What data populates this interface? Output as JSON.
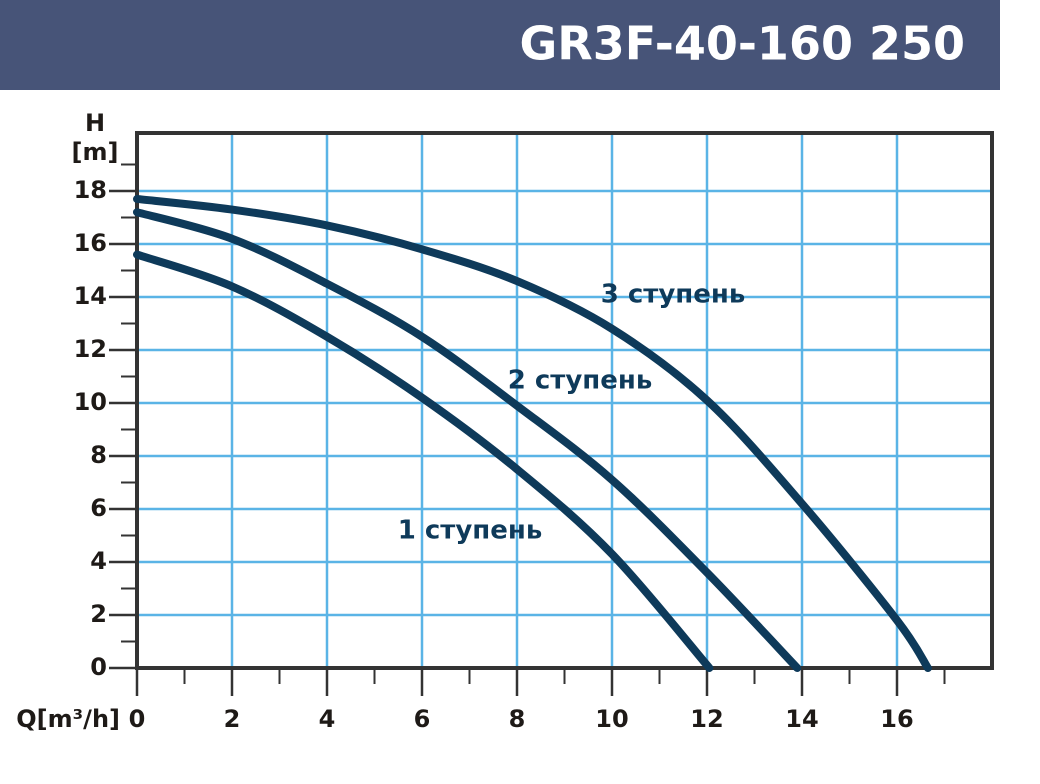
{
  "chart_data": {
    "type": "line",
    "title": "GR3F-40-160 250",
    "y_label_lines": [
      "H",
      "[m]"
    ],
    "x_label": "Q[m³/h]",
    "xlim": [
      0,
      18
    ],
    "xticks": [
      0,
      2,
      4,
      6,
      8,
      10,
      12,
      14,
      16
    ],
    "ylim": [
      0,
      20
    ],
    "yticks": [
      0,
      2,
      4,
      6,
      8,
      10,
      12,
      14,
      16,
      18
    ],
    "grid": true,
    "grid_color": "#5ab4e6",
    "series": [
      {
        "name": "1 ступень",
        "color": "#0e3a5a",
        "x": [
          0,
          2,
          4,
          6,
          8,
          10,
          12.05
        ],
        "values": [
          15.6,
          14.4,
          12.5,
          10.2,
          7.5,
          4.3,
          0
        ]
      },
      {
        "name": "2 ступень",
        "color": "#0e3a5a",
        "x": [
          0,
          2,
          4,
          6,
          8,
          10,
          12,
          13.9
        ],
        "values": [
          17.2,
          16.2,
          14.5,
          12.5,
          9.9,
          7.1,
          3.6,
          0
        ]
      },
      {
        "name": "3 ступень",
        "color": "#0e3a5a",
        "x": [
          0,
          2,
          4,
          6,
          8,
          10,
          12,
          14,
          16,
          16.65
        ],
        "values": [
          17.7,
          17.3,
          16.7,
          15.8,
          14.6,
          12.8,
          10.1,
          6.2,
          1.8,
          0
        ]
      }
    ]
  }
}
